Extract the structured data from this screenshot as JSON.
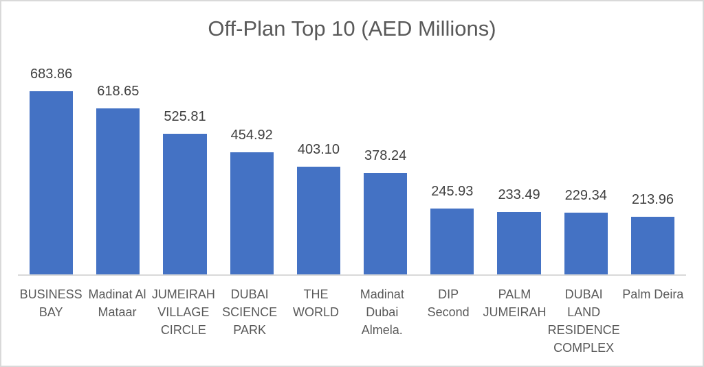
{
  "chart_data": {
    "type": "bar",
    "title": "Off-Plan Top 10 (AED Millions)",
    "categories": [
      "BUSINESS BAY",
      "Madinat Al Mataar",
      "JUMEIRAH VILLAGE CIRCLE",
      "DUBAI SCIENCE PARK",
      "THE WORLD",
      "Madinat Dubai Almela.",
      "DIP Second",
      "PALM JUMEIRAH",
      "DUBAI LAND RESIDENCE COMPLEX",
      "Palm Deira"
    ],
    "tick_lines": [
      [
        "BUSINESS",
        "BAY"
      ],
      [
        "Madinat Al",
        "Mataar"
      ],
      [
        "JUMEIRAH",
        "VILLAGE",
        "CIRCLE"
      ],
      [
        "DUBAI",
        "SCIENCE",
        "PARK"
      ],
      [
        "THE",
        "WORLD"
      ],
      [
        "Madinat",
        "Dubai",
        "Almela."
      ],
      [
        "DIP",
        "Second"
      ],
      [
        "PALM",
        "JUMEIRAH"
      ],
      [
        "DUBAI",
        "LAND",
        "RESIDENCE",
        "COMPLEX"
      ],
      [
        "Palm Deira"
      ]
    ],
    "values": [
      683.86,
      618.65,
      525.81,
      454.92,
      403.1,
      378.24,
      245.93,
      233.49,
      229.34,
      213.96
    ],
    "value_labels": [
      "683.86",
      "618.65",
      "525.81",
      "454.92",
      "403.10",
      "378.24",
      "245.93",
      "233.49",
      "229.34",
      "213.96"
    ],
    "xlabel": "",
    "ylabel": "",
    "ylim": [
      0,
      700
    ],
    "grid": false,
    "legend": false,
    "colors": {
      "bar": "#4472C4",
      "title": "#595959",
      "value_label": "#404040",
      "tick_label": "#595959",
      "axis_line": "#D9D9D9",
      "frame_border": "#D9D9D9",
      "background": "#FFFFFF"
    }
  }
}
